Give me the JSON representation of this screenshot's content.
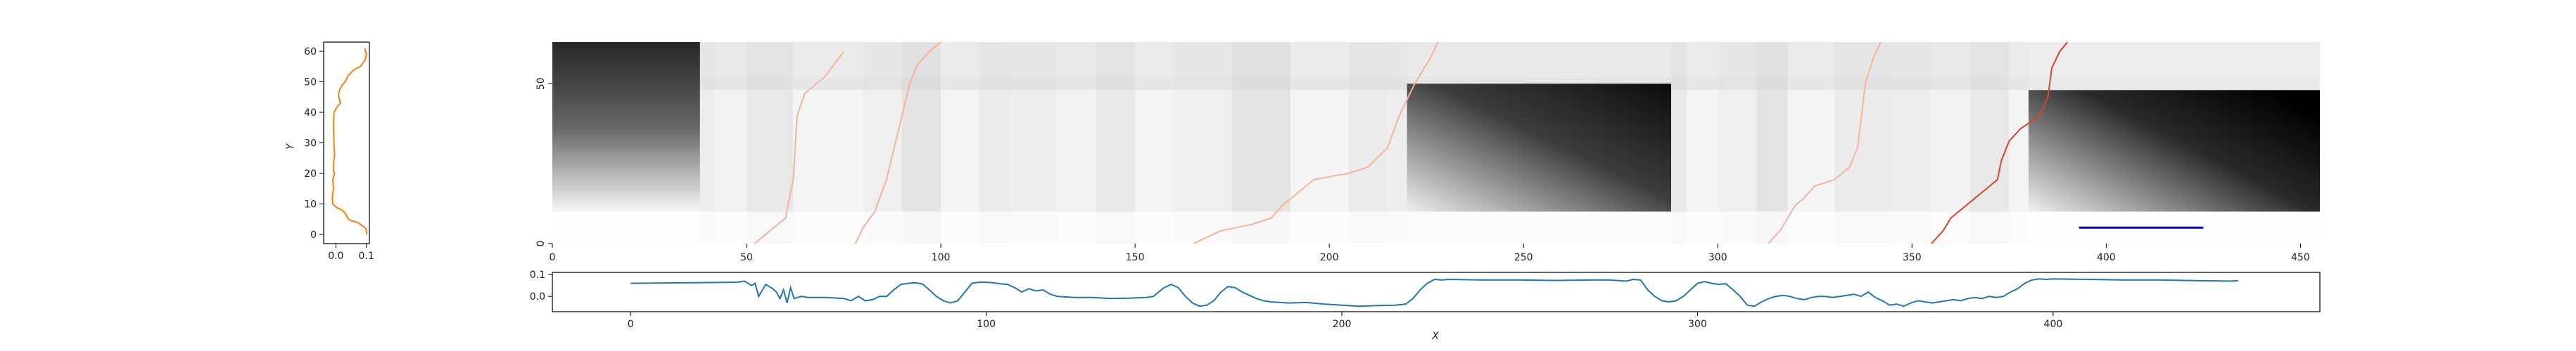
{
  "colors": {
    "left_line": "#ff7f0e",
    "bottom_line": "#1f77b4",
    "path_dark": "#d8452a",
    "path_light": "#f7b29a",
    "segment": "#0000cc",
    "axis": "#000000"
  },
  "chart_data": [
    {
      "id": "left_profile",
      "type": "line",
      "ylabel": "Y",
      "xlabel": "",
      "xlim": [
        -0.04,
        0.11
      ],
      "ylim": [
        -3,
        63
      ],
      "xticks": [
        "0.0",
        "0.1"
      ],
      "xtick_values": [
        0.0,
        0.1
      ],
      "yticks": [
        "0",
        "10",
        "20",
        "30",
        "40",
        "50",
        "60"
      ],
      "ytick_values": [
        0,
        10,
        20,
        30,
        40,
        50,
        60
      ],
      "series": [
        {
          "x": [
            0.102,
            0.098,
            0.085,
            0.07,
            0.05,
            0.042,
            0.035,
            0.03,
            0.02,
            0.0,
            -0.01,
            -0.012,
            -0.008,
            -0.01,
            -0.005,
            -0.008,
            -0.008,
            -0.004,
            -0.006,
            -0.008,
            -0.006,
            0.005,
            0.015,
            0.01,
            0.008,
            0.015,
            0.022,
            0.03,
            0.04,
            0.06,
            0.08,
            0.095,
            0.1,
            0.095
          ],
          "y": [
            0,
            2,
            3,
            4,
            4.5,
            5,
            6,
            7,
            8,
            9,
            10,
            12,
            15,
            18,
            20,
            21,
            23,
            26,
            30,
            35,
            40,
            42,
            43,
            45,
            46,
            48,
            49,
            50,
            52,
            54,
            55,
            57,
            59,
            61
          ]
        }
      ]
    },
    {
      "id": "heatmap",
      "type": "heatmap",
      "xlabel": "",
      "ylabel": "",
      "xlim": [
        0,
        455
      ],
      "ylim": [
        0,
        63
      ],
      "xticks": [
        "0",
        "50",
        "100",
        "150",
        "200",
        "250",
        "300",
        "350",
        "400",
        "450"
      ],
      "xtick_values": [
        0,
        50,
        100,
        150,
        200,
        250,
        300,
        350,
        400,
        450
      ],
      "yticks": [
        "0",
        "50"
      ],
      "ytick_values": [
        0,
        50
      ],
      "colormap": "Greys",
      "dark_blocks": [
        {
          "x0": 0,
          "x1": 38,
          "y0": 10,
          "y1": 63,
          "intensity": 0.9
        },
        {
          "x0": 220,
          "x1": 288,
          "y0": 10,
          "y1": 50,
          "intensity": 0.95
        },
        {
          "x0": 380,
          "x1": 455,
          "y0": 10,
          "y1": 48,
          "intensity": 1.0
        }
      ],
      "paths": [
        {
          "style": "path_light",
          "x": [
            52,
            55,
            60,
            62,
            63,
            65,
            70,
            75
          ],
          "y": [
            0,
            3,
            8,
            20,
            40,
            47,
            52,
            60
          ]
        },
        {
          "style": "path_light",
          "x": [
            78,
            80,
            83,
            86,
            88,
            90,
            92,
            94,
            97,
            100
          ],
          "y": [
            0,
            5,
            10,
            20,
            30,
            40,
            50,
            56,
            60,
            63
          ]
        },
        {
          "style": "path_light",
          "x": [
            165,
            172,
            180,
            185,
            188,
            192,
            196,
            205,
            210,
            215,
            218,
            222,
            226,
            228
          ],
          "y": [
            0,
            4,
            6,
            8,
            12,
            16,
            20,
            22,
            24,
            30,
            40,
            50,
            58,
            63
          ]
        },
        {
          "style": "path_light",
          "x": [
            313,
            316,
            318,
            320,
            322,
            325,
            330,
            334,
            336,
            337,
            338,
            340,
            342
          ],
          "y": [
            0,
            4,
            8,
            12,
            14,
            18,
            20,
            24,
            30,
            40,
            50,
            58,
            63
          ]
        },
        {
          "style": "path_dark",
          "x": [
            355,
            358,
            360,
            364,
            368,
            372,
            373,
            375,
            378,
            383,
            385,
            386,
            388,
            390
          ],
          "y": [
            0,
            4,
            8,
            12,
            16,
            20,
            26,
            32,
            36,
            40,
            46,
            55,
            60,
            63
          ]
        }
      ],
      "segment": {
        "x": [
          393,
          425
        ],
        "y": [
          5,
          5
        ]
      }
    },
    {
      "id": "bottom_profile",
      "type": "line",
      "xlabel": "X",
      "ylabel": "",
      "xlim": [
        -22,
        475
      ],
      "ylim": [
        -0.07,
        0.11
      ],
      "xticks": [
        "0",
        "100",
        "200",
        "300",
        "400"
      ],
      "xtick_values": [
        0,
        100,
        200,
        300,
        400
      ],
      "yticks": [
        "0.0",
        "0.1"
      ],
      "ytick_values": [
        0.0,
        0.1
      ],
      "series": [
        {
          "x": [
            0,
            15,
            30,
            32,
            34,
            35,
            36,
            38,
            40,
            41,
            42,
            43,
            44,
            45,
            46,
            48,
            50,
            55,
            60,
            62,
            64,
            66,
            68,
            70,
            72,
            74,
            76,
            78,
            80,
            82,
            84,
            86,
            88,
            90,
            92,
            94,
            96,
            98,
            100,
            102,
            104,
            106,
            108,
            110,
            112,
            114,
            116,
            118,
            120,
            125,
            130,
            135,
            140,
            145,
            147,
            150,
            152,
            154,
            156,
            158,
            160,
            162,
            164,
            166,
            168,
            170,
            172,
            174,
            176,
            178,
            180,
            185,
            190,
            195,
            200,
            205,
            210,
            215,
            218,
            220,
            222,
            224,
            226,
            228,
            230,
            240,
            250,
            260,
            270,
            275,
            280,
            282,
            284,
            286,
            288,
            290,
            292,
            294,
            296,
            298,
            300,
            302,
            304,
            306,
            308,
            310,
            312,
            314,
            316,
            318,
            320,
            322,
            324,
            326,
            328,
            330,
            332,
            334,
            336,
            338,
            340,
            342,
            344,
            346,
            348,
            350,
            352,
            354,
            356,
            358,
            360,
            362,
            364,
            366,
            368,
            370,
            372,
            374,
            376,
            378,
            380,
            382,
            384,
            386,
            388,
            390,
            392,
            394,
            396,
            398,
            400,
            410,
            420,
            430,
            440,
            450,
            452
          ],
          "y": [
            0.06,
            0.062,
            0.065,
            0.07,
            0.05,
            0.06,
            0.0,
            0.055,
            0.035,
            0.02,
            -0.01,
            0.03,
            -0.03,
            0.04,
            -0.01,
            0.0,
            -0.005,
            -0.005,
            -0.01,
            -0.02,
            0.0,
            -0.02,
            -0.015,
            0.0,
            0.0,
            0.03,
            0.055,
            0.06,
            0.062,
            0.058,
            0.03,
            0.0,
            -0.02,
            -0.03,
            -0.02,
            0.02,
            0.06,
            0.065,
            0.065,
            0.062,
            0.058,
            0.055,
            0.04,
            0.02,
            0.035,
            0.025,
            0.03,
            0.01,
            0.0,
            -0.005,
            -0.005,
            -0.01,
            -0.008,
            -0.005,
            0.0,
            0.04,
            0.055,
            0.04,
            0.0,
            -0.03,
            -0.045,
            -0.04,
            -0.02,
            0.02,
            0.045,
            0.04,
            0.02,
            0.005,
            -0.01,
            -0.02,
            -0.025,
            -0.03,
            -0.028,
            -0.035,
            -0.04,
            -0.045,
            -0.042,
            -0.04,
            -0.035,
            -0.01,
            0.03,
            0.06,
            0.078,
            0.075,
            0.078,
            0.075,
            0.075,
            0.073,
            0.075,
            0.075,
            0.07,
            0.078,
            0.075,
            0.03,
            0.0,
            -0.02,
            -0.025,
            -0.02,
            0.0,
            0.03,
            0.06,
            0.068,
            0.06,
            0.055,
            0.058,
            0.03,
            0.0,
            -0.04,
            -0.045,
            -0.025,
            -0.01,
            0.0,
            0.005,
            0.0,
            -0.01,
            -0.015,
            -0.005,
            0.0,
            0.0,
            -0.005,
            0.0,
            0.005,
            0.01,
            0.0,
            0.02,
            -0.005,
            -0.02,
            -0.04,
            -0.035,
            -0.045,
            -0.03,
            -0.02,
            -0.025,
            -0.03,
            -0.025,
            -0.02,
            -0.015,
            -0.02,
            -0.01,
            -0.005,
            -0.01,
            0.0,
            -0.005,
            0.0,
            0.02,
            0.035,
            0.06,
            0.075,
            0.08,
            0.078,
            0.08,
            0.078,
            0.075,
            0.075,
            0.072,
            0.07,
            0.072
          ]
        }
      ]
    }
  ]
}
